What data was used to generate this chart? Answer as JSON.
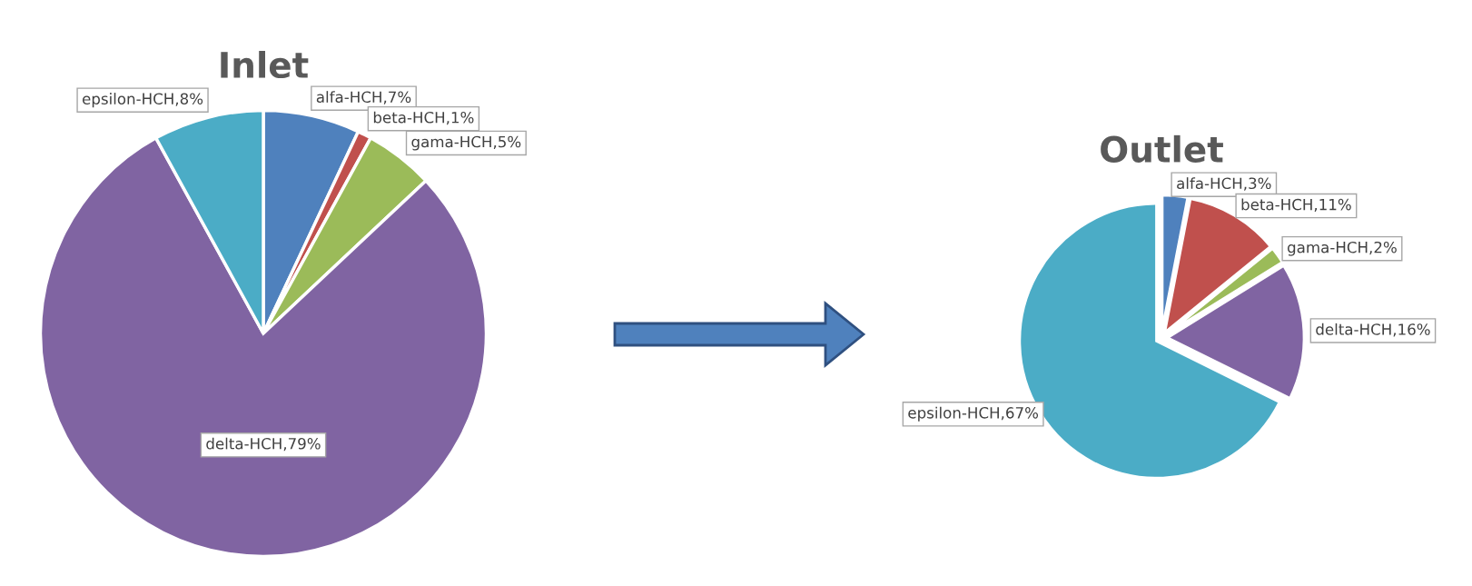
{
  "chart_data": [
    {
      "type": "pie",
      "title": "Inlet",
      "categories": [
        "alfa-HCH",
        "beta-HCH",
        "gama-HCH",
        "delta-HCH",
        "epsilon-HCH"
      ],
      "values": [
        7,
        1,
        5,
        79,
        8
      ],
      "colors": [
        "#4f81bd",
        "#c0504d",
        "#9bbb59",
        "#8064a2",
        "#4bacc6"
      ],
      "value_labels": [
        "7%",
        "1%",
        "5%",
        "79%",
        "8%"
      ],
      "legend": false
    },
    {
      "type": "pie",
      "title": "Outlet",
      "categories": [
        "alfa-HCH",
        "beta-HCH",
        "gama-HCH",
        "delta-HCH",
        "epsilon-HCH"
      ],
      "values": [
        3,
        11,
        2,
        16,
        67
      ],
      "colors": [
        "#4f81bd",
        "#c0504d",
        "#9bbb59",
        "#8064a2",
        "#4bacc6"
      ],
      "value_labels": [
        "3%",
        "11%",
        "2%",
        "16%",
        "67%"
      ],
      "legend": false
    }
  ]
}
